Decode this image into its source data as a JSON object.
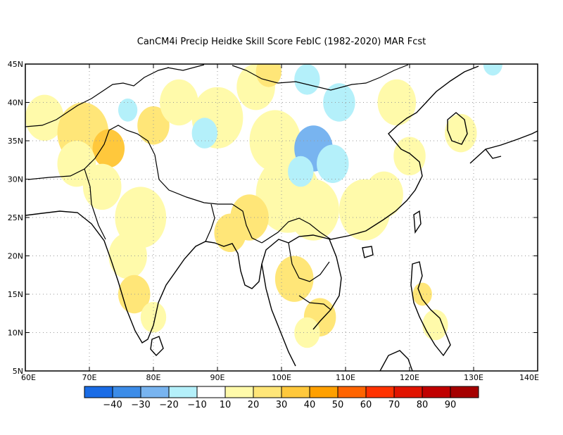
{
  "title": "CanCM4i Precip Heidke Skill Score FebIC (1982-2020) MAR Fcst",
  "map": {
    "lon_range": [
      60,
      140
    ],
    "lat_range": [
      5,
      45
    ],
    "lon_ticks": [
      "60E",
      "70E",
      "80E",
      "90E",
      "100E",
      "110E",
      "120E",
      "130E",
      "140E"
    ],
    "lat_ticks": [
      "5N",
      "10N",
      "15N",
      "20N",
      "25N",
      "30N",
      "35N",
      "40N",
      "45N"
    ]
  },
  "colorbar": {
    "colors": [
      "#1a6ce6",
      "#3c8ce8",
      "#78b4f0",
      "#b4f0fa",
      "#ffffff",
      "#fffaaa",
      "#ffe678",
      "#ffc83c",
      "#ffa000",
      "#ff6400",
      "#ff3200",
      "#e11400",
      "#c00000",
      "#a50000"
    ],
    "labels": [
      "−40",
      "−30",
      "−20",
      "−10",
      "10",
      "20",
      "30",
      "40",
      "50",
      "60",
      "70",
      "80",
      "90"
    ]
  },
  "field_patches": [
    {
      "lon": 63,
      "lat": 38,
      "r": 3,
      "level": 1
    },
    {
      "lon": 69,
      "lat": 36,
      "r": 4,
      "level": 2
    },
    {
      "lon": 73,
      "lat": 34,
      "r": 2.5,
      "level": 3
    },
    {
      "lon": 68,
      "lat": 32,
      "r": 3,
      "level": 1
    },
    {
      "lon": 72,
      "lat": 29,
      "r": 3,
      "level": 1
    },
    {
      "lon": 80,
      "lat": 37,
      "r": 2.5,
      "level": 2
    },
    {
      "lon": 84,
      "lat": 40,
      "r": 3,
      "level": 1
    },
    {
      "lon": 90,
      "lat": 38,
      "r": 4,
      "level": 1
    },
    {
      "lon": 96,
      "lat": 42,
      "r": 3,
      "level": 1
    },
    {
      "lon": 98,
      "lat": 44,
      "r": 2,
      "level": 2
    },
    {
      "lon": 99,
      "lat": 35,
      "r": 4,
      "level": 1
    },
    {
      "lon": 101,
      "lat": 28,
      "r": 5,
      "level": 1
    },
    {
      "lon": 95,
      "lat": 25,
      "r": 3,
      "level": 2
    },
    {
      "lon": 92,
      "lat": 23,
      "r": 2.5,
      "level": 2
    },
    {
      "lon": 105,
      "lat": 26,
      "r": 4,
      "level": 1
    },
    {
      "lon": 113,
      "lat": 26,
      "r": 4,
      "level": 1
    },
    {
      "lon": 116,
      "lat": 28,
      "r": 3,
      "level": 1
    },
    {
      "lon": 120,
      "lat": 33,
      "r": 2.5,
      "level": 1
    },
    {
      "lon": 78,
      "lat": 25,
      "r": 4,
      "level": 1
    },
    {
      "lon": 76,
      "lat": 20,
      "r": 3,
      "level": 1
    },
    {
      "lon": 77,
      "lat": 15,
      "r": 2.5,
      "level": 2
    },
    {
      "lon": 80,
      "lat": 12,
      "r": 2,
      "level": 1
    },
    {
      "lon": 102,
      "lat": 17,
      "r": 3,
      "level": 2
    },
    {
      "lon": 106,
      "lat": 12,
      "r": 2.5,
      "level": 2
    },
    {
      "lon": 104,
      "lat": 10,
      "r": 2,
      "level": 1
    },
    {
      "lon": 122,
      "lat": 15,
      "r": 1.5,
      "level": 2
    },
    {
      "lon": 124,
      "lat": 11,
      "r": 2,
      "level": 1
    },
    {
      "lon": 118,
      "lat": 40,
      "r": 3,
      "level": 1
    },
    {
      "lon": 128,
      "lat": 36,
      "r": 2.5,
      "level": 1
    },
    {
      "lon": 105,
      "lat": 34,
      "r": 3,
      "level": -2
    },
    {
      "lon": 108,
      "lat": 32,
      "r": 2.5,
      "level": -1
    },
    {
      "lon": 103,
      "lat": 31,
      "r": 2,
      "level": -1
    },
    {
      "lon": 104,
      "lat": 43,
      "r": 2,
      "level": -1
    },
    {
      "lon": 109,
      "lat": 40,
      "r": 2.5,
      "level": -1
    },
    {
      "lon": 88,
      "lat": 36,
      "r": 2,
      "level": -1
    },
    {
      "lon": 76,
      "lat": 39,
      "r": 1.5,
      "level": -1
    },
    {
      "lon": 133,
      "lat": 45,
      "r": 1.5,
      "level": -1
    }
  ]
}
